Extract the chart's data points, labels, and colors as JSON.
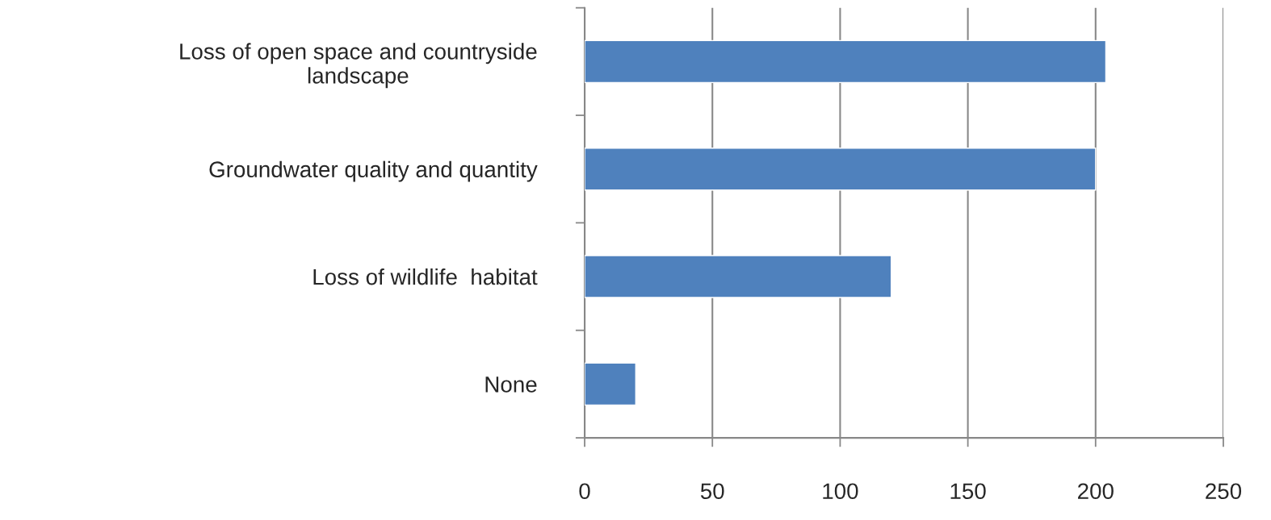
{
  "chart_data": {
    "type": "bar",
    "orientation": "horizontal",
    "categories": [
      "Loss of open space and countryside\nlandscape",
      "Groundwater quality and quantity",
      "Loss of wildlife  habitat",
      "None"
    ],
    "values": [
      204,
      200,
      120,
      20
    ],
    "color": "#4f81bd",
    "xlim": [
      0,
      250
    ],
    "xticks": [
      0,
      50,
      100,
      150,
      200,
      250
    ],
    "grid": "x",
    "legend": false
  }
}
